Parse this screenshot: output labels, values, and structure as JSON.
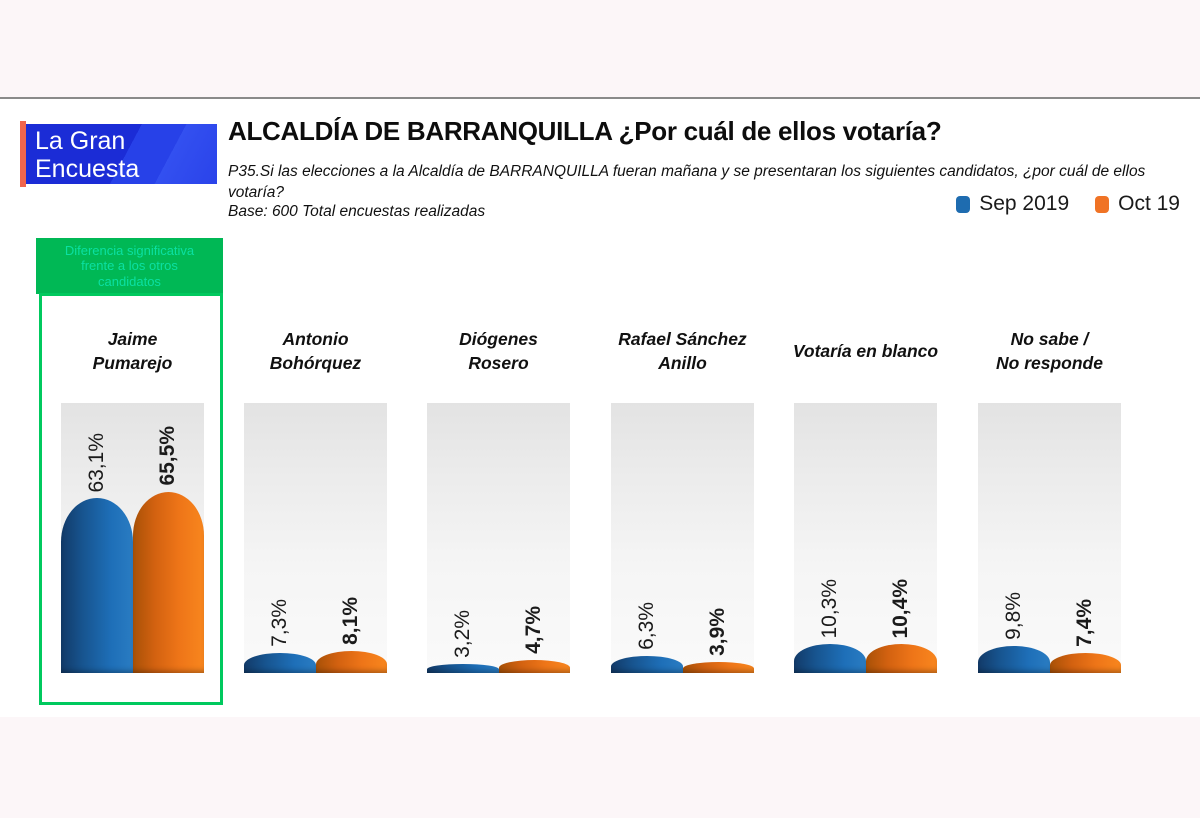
{
  "header": {
    "logo": {
      "line1": "La Gran",
      "line2": "Encuesta",
      "bar_color": "#f0654d",
      "bg_color": "#1d35e0"
    },
    "title": "ALCALDÍA DE BARRANQUILLA ¿Por cuál de ellos votaría?",
    "question_line1": "P35.Si las elecciones a la Alcaldía de BARRANQUILLA fueran mañana y se presentaran los siguientes candidatos, ¿por cuál de ellos",
    "question_line2": "votaría?",
    "base": "Base: 600 Total encuestas realizadas",
    "legend": [
      {
        "label": "Sep 2019",
        "color": "#1e6cb0"
      },
      {
        "label": "Oct 19",
        "color": "#f07325"
      }
    ]
  },
  "annotation": {
    "text_lines": [
      "Diferencia significativa",
      "frente a los otros",
      "candidatos"
    ],
    "box_color": "#00b855",
    "border_color": "#00c95e",
    "text_color": "#0be0a2"
  },
  "chart_data": {
    "type": "bar",
    "title": "ALCALDÍA DE BARRANQUILLA ¿Por cuál de ellos votaría?",
    "categories": [
      "Jaime Pumarejo",
      "Antonio Bohórquez",
      "Diógenes Rosero",
      "Rafael Sánchez Anillo",
      "Votaría en blanco",
      "No sabe / No responde"
    ],
    "category_lines": [
      [
        "Jaime",
        "Pumarejo"
      ],
      [
        "Antonio",
        "Bohórquez"
      ],
      [
        "Diógenes",
        "Rosero"
      ],
      [
        "Rafael Sánchez",
        "Anillo"
      ],
      [
        "Votaría en blanco"
      ],
      [
        "No sabe /",
        "No responde"
      ]
    ],
    "series": [
      {
        "name": "Sep 2019",
        "color": "#1e6cb0",
        "values": [
          63.1,
          7.3,
          3.2,
          6.3,
          10.3,
          9.8
        ],
        "labels": [
          "63,1%",
          "7,3%",
          "3,2%",
          "6,3%",
          "10,3%",
          "9,8%"
        ]
      },
      {
        "name": "Oct 19",
        "color": "#f07325",
        "values": [
          65.5,
          8.1,
          4.7,
          3.9,
          10.4,
          7.4
        ],
        "labels": [
          "65,5%",
          "8,1%",
          "4,7%",
          "3,9%",
          "10,4%",
          "7,4%"
        ]
      }
    ],
    "highlighted_category": "Jaime Pumarejo",
    "annotation": "Diferencia significativa frente a los otros candidatos",
    "ylim": [
      0,
      97
    ],
    "grid": false,
    "legend_position": "top-right"
  }
}
